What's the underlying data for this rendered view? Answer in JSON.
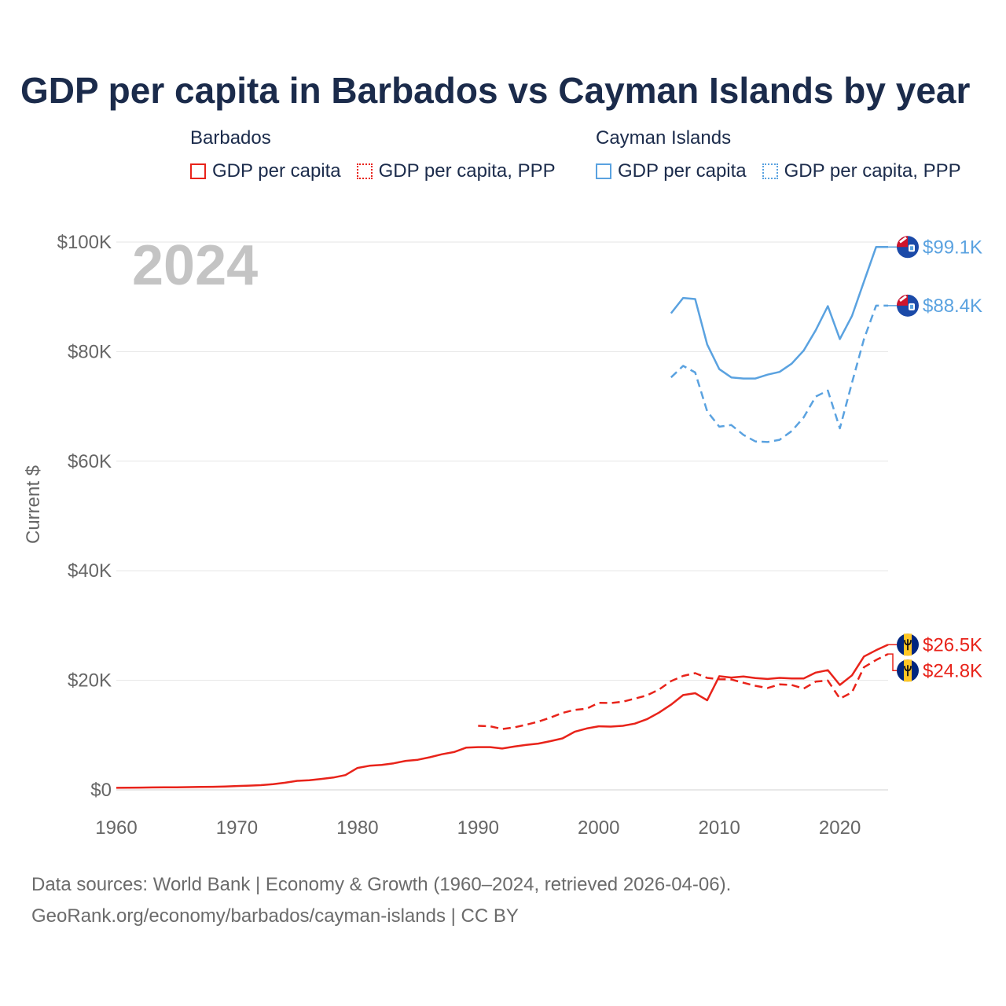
{
  "title": "GDP per capita in Barbados vs Cayman Islands by year",
  "legend": {
    "groups": [
      {
        "name": "Barbados",
        "items": [
          "GDP per capita",
          "GDP per capita, PPP"
        ],
        "color": "#e8231a"
      },
      {
        "name": "Cayman Islands",
        "items": [
          "GDP per capita",
          "GDP per capita, PPP"
        ],
        "color": "#5aa2e0"
      }
    ]
  },
  "year_label": "2024",
  "footer": {
    "line1": "Data sources: World Bank | Economy & Growth (1960–2024, retrieved 2026-04-06).",
    "line2": "GeoRank.org/economy/barbados/cayman-islands | CC BY"
  },
  "colors": {
    "barbados": "#e8231a",
    "cayman": "#5aa2e0",
    "title": "#1b2b4b",
    "axis_text": "#666666",
    "grid": "#e6e6e6"
  },
  "chart_data": {
    "type": "line",
    "title": "GDP per capita in Barbados vs Cayman Islands by year",
    "xlabel": "",
    "ylabel": "Current $",
    "xlim": [
      1960,
      2024
    ],
    "ylim": [
      0,
      100000
    ],
    "x_ticks": [
      1960,
      1970,
      1980,
      1990,
      2000,
      2010,
      2020
    ],
    "y_ticks": [
      {
        "value": 0,
        "label": "$0"
      },
      {
        "value": 20000,
        "label": "$20K"
      },
      {
        "value": 40000,
        "label": "$40K"
      },
      {
        "value": 60000,
        "label": "$60K"
      },
      {
        "value": 80000,
        "label": "$80K"
      },
      {
        "value": 100000,
        "label": "$100K"
      }
    ],
    "series": [
      {
        "name": "Barbados — GDP per capita",
        "country": "Barbados",
        "style": "solid",
        "color": "#e8231a",
        "end_label": "$26.5K",
        "flag": "barbados",
        "x": [
          1960,
          1961,
          1962,
          1963,
          1964,
          1965,
          1966,
          1967,
          1968,
          1969,
          1970,
          1971,
          1972,
          1973,
          1974,
          1975,
          1976,
          1977,
          1978,
          1979,
          1980,
          1981,
          1982,
          1983,
          1984,
          1985,
          1986,
          1987,
          1988,
          1989,
          1990,
          1991,
          1992,
          1993,
          1994,
          1995,
          1996,
          1997,
          1998,
          1999,
          2000,
          2001,
          2002,
          2003,
          2004,
          2005,
          2006,
          2007,
          2008,
          2009,
          2010,
          2011,
          2012,
          2013,
          2014,
          2015,
          2016,
          2017,
          2018,
          2019,
          2020,
          2021,
          2022,
          2023,
          2024
        ],
        "values": [
          380,
          390,
          420,
          440,
          460,
          470,
          500,
          530,
          560,
          610,
          700,
          780,
          860,
          1050,
          1300,
          1650,
          1750,
          2000,
          2250,
          2700,
          4000,
          4400,
          4550,
          4850,
          5300,
          5500,
          5950,
          6500,
          6900,
          7700,
          7800,
          7800,
          7550,
          7900,
          8200,
          8450,
          8900,
          9400,
          10600,
          11200,
          11600,
          11550,
          11700,
          12100,
          12900,
          14100,
          15550,
          17300,
          17650,
          16350,
          20750,
          20500,
          20700,
          20400,
          20250,
          20450,
          20350,
          20350,
          21400,
          21850,
          19150,
          20900,
          24350,
          25500,
          26500
        ]
      },
      {
        "name": "Barbados — GDP per capita, PPP",
        "country": "Barbados",
        "style": "dashed",
        "color": "#e8231a",
        "end_label": "$24.8K",
        "flag": "barbados",
        "x": [
          1990,
          1991,
          1992,
          1993,
          1994,
          1995,
          1996,
          1997,
          1998,
          1999,
          2000,
          2001,
          2002,
          2003,
          2004,
          2005,
          2006,
          2007,
          2008,
          2009,
          2010,
          2011,
          2012,
          2013,
          2014,
          2015,
          2016,
          2017,
          2018,
          2019,
          2020,
          2021,
          2022,
          2023,
          2024
        ],
        "values": [
          11700,
          11600,
          11100,
          11400,
          11900,
          12450,
          13200,
          14050,
          14600,
          14800,
          15900,
          15850,
          16100,
          16650,
          17250,
          18300,
          19850,
          20800,
          21300,
          20450,
          20200,
          20150,
          19550,
          19000,
          18600,
          19250,
          19150,
          18500,
          19750,
          19950,
          16650,
          17800,
          22400,
          23700,
          24800
        ]
      },
      {
        "name": "Cayman Islands — GDP per capita",
        "country": "Cayman Islands",
        "style": "solid",
        "color": "#5aa2e0",
        "end_label": "$99.1K",
        "flag": "cayman",
        "x": [
          2006,
          2007,
          2008,
          2009,
          2010,
          2011,
          2012,
          2013,
          2014,
          2015,
          2016,
          2017,
          2018,
          2019,
          2020,
          2021,
          2022,
          2023,
          2024
        ],
        "values": [
          87000,
          89800,
          89600,
          81300,
          76800,
          75300,
          75100,
          75100,
          75800,
          76300,
          77800,
          80200,
          83900,
          88300,
          82300,
          86500,
          92800,
          99100,
          99100
        ]
      },
      {
        "name": "Cayman Islands — GDP per capita, PPP",
        "country": "Cayman Islands",
        "style": "dashed",
        "color": "#5aa2e0",
        "end_label": "$88.4K",
        "flag": "cayman",
        "x": [
          2006,
          2007,
          2008,
          2009,
          2010,
          2011,
          2012,
          2013,
          2014,
          2015,
          2016,
          2017,
          2018,
          2019,
          2020,
          2021,
          2022,
          2023,
          2024
        ],
        "values": [
          75300,
          77400,
          76200,
          69100,
          66300,
          66600,
          64800,
          63600,
          63500,
          63900,
          65500,
          68000,
          71800,
          72900,
          66000,
          74300,
          82300,
          88400,
          88400
        ]
      }
    ]
  }
}
